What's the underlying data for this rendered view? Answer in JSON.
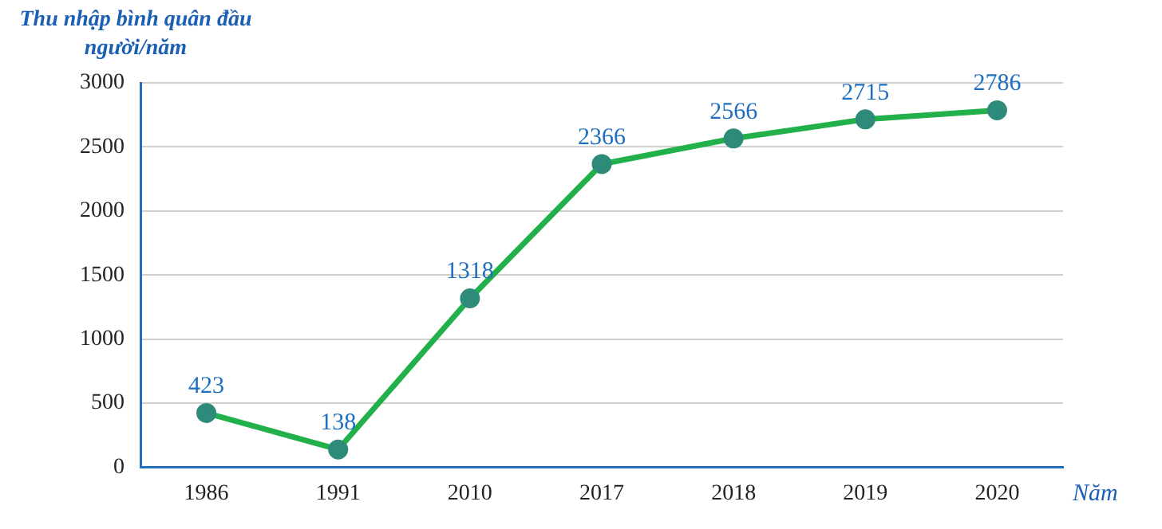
{
  "chart_data": {
    "type": "line",
    "ylabel": "Thu nhập bình quân đầu người/năm",
    "xlabel": "Năm",
    "categories": [
      "1986",
      "1991",
      "2010",
      "2017",
      "2018",
      "2019",
      "2020"
    ],
    "series": [
      {
        "color": "#22b04b",
        "values": [
          423,
          138,
          1318,
          2366,
          2566,
          2715,
          2786
        ]
      }
    ],
    "ylim": [
      0,
      3000
    ],
    "yticks": [
      0,
      500,
      1000,
      1500,
      2000,
      2500,
      3000
    ],
    "grid": "y",
    "legend": false,
    "marker": "circle",
    "line_style": "solid",
    "data_labels": true
  }
}
